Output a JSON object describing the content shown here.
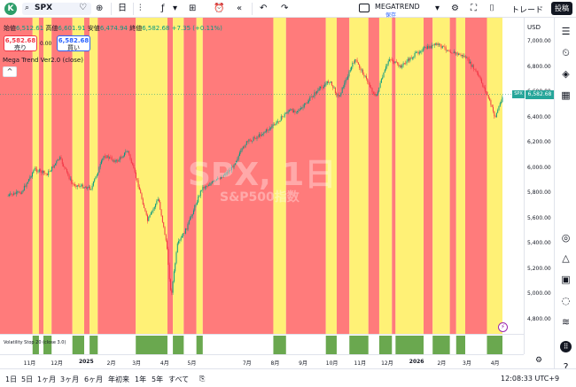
{
  "toolbar": {
    "avatar_letter": "K",
    "symbol": "SPX",
    "interval": "日",
    "indicator_name": "MEGATREND",
    "indicator_sub": "保存",
    "trade_label": "トレード",
    "post_label": "投稿"
  },
  "legend": {
    "open_label": "始値",
    "open": "6,512.61",
    "high_label": "高値",
    "high": "6,601.91",
    "low_label": "安値",
    "low": "6,474.94",
    "close_label": "終値",
    "close": "6,582.68",
    "change": "+7.35 (+0.11%)",
    "sell_price": "6,582.68",
    "sell_label": "売り",
    "buy_price": "6,582.68",
    "buy_label": "買い",
    "spread": "0.00",
    "indicator": "Mega Trend Ver2.0 (close)",
    "collapse_icon": "^"
  },
  "watermark": {
    "line1": "SPX, 1日",
    "line2": "S&P500指数"
  },
  "price_axis": {
    "currency": "USD",
    "ticks": [
      "7,000.00",
      "6,800.00",
      "6,600.00",
      "6,400.00",
      "6,200.00",
      "6,000.00",
      "5,800.00",
      "5,600.00",
      "5,400.00",
      "5,200.00",
      "5,000.00",
      "4,800.00"
    ],
    "last_price": "6,582.68",
    "symbol_tag": "SPX"
  },
  "time_axis": {
    "ticks": [
      "11月",
      "12月",
      "2025",
      "2月",
      "3月",
      "4月",
      "5月",
      "7月",
      "8月",
      "9月",
      "10月",
      "11月",
      "12月",
      "2026",
      "2月",
      "3月",
      "4月"
    ]
  },
  "sub_pane_label": "Volatility Stop 20 (close 3.0)",
  "tradingview_logo": "TradingView",
  "periods": [
    "1日",
    "5日",
    "1ヶ月",
    "3ヶ月",
    "6ヶ月",
    "年初来",
    "1年",
    "5年",
    "すべて"
  ],
  "clock": "12:08:33 UTC+9",
  "colors": {
    "bear_zone": "#ff7b7b",
    "bull_zone": "#fff176",
    "up": "#089981",
    "down": "#f23645",
    "sub_green": "#6aa84f"
  },
  "chart_data": {
    "type": "line",
    "series": [
      {
        "x": [
          "2024-10-10",
          "2024-10-25",
          "2024-11-08",
          "2024-11-22",
          "2024-12-06",
          "2024-12-20",
          "2025-01-10",
          "2025-01-24",
          "2025-02-07",
          "2025-02-19",
          "2025-03-03",
          "2025-03-13",
          "2025-03-25",
          "2025-04-03",
          "2025-04-08",
          "2025-04-15",
          "2025-04-25",
          "2025-05-12",
          "2025-05-28",
          "2025-06-13",
          "2025-06-30",
          "2025-07-15",
          "2025-07-31",
          "2025-08-15",
          "2025-08-29",
          "2025-09-15",
          "2025-09-30",
          "2025-10-10",
          "2025-10-28",
          "2025-11-07",
          "2025-11-20",
          "2025-12-05",
          "2025-12-17",
          "2026-01-08",
          "2026-01-27",
          "2026-02-12",
          "2026-02-27",
          "2026-03-12",
          "2026-03-24",
          "2026-04-01",
          "2026-04-10"
        ],
        "values": [
          5780,
          5810,
          5990,
          5950,
          6080,
          5870,
          5840,
          6100,
          6050,
          6140,
          5860,
          5580,
          5760,
          5400,
          4980,
          5390,
          5520,
          5840,
          5900,
          5990,
          6200,
          6260,
          6340,
          6450,
          6460,
          6600,
          6690,
          6560,
          6860,
          6740,
          6560,
          6870,
          6800,
          6930,
          6980,
          6920,
          6880,
          6750,
          6570,
          6400,
          6582.68
        ]
      }
    ],
    "ylim": [
      4700,
      7120
    ]
  },
  "zones": [
    {
      "start": "2024-10-01",
      "end": "2024-11-06",
      "trend": "bear"
    },
    {
      "start": "2024-11-06",
      "end": "2024-11-13",
      "trend": "bull"
    },
    {
      "start": "2024-11-13",
      "end": "2024-11-18",
      "trend": "bear"
    },
    {
      "start": "2024-11-18",
      "end": "2024-11-27",
      "trend": "bull"
    },
    {
      "start": "2024-11-27",
      "end": "2024-12-20",
      "trend": "bear"
    },
    {
      "start": "2024-12-20",
      "end": "2025-01-02",
      "trend": "bull"
    },
    {
      "start": "2025-01-02",
      "end": "2025-01-08",
      "trend": "bear"
    },
    {
      "start": "2025-01-08",
      "end": "2025-01-17",
      "trend": "bull"
    },
    {
      "start": "2025-01-17",
      "end": "2025-02-28",
      "trend": "bear"
    },
    {
      "start": "2025-02-28",
      "end": "2025-04-04",
      "trend": "bull"
    },
    {
      "start": "2025-04-04",
      "end": "2025-04-10",
      "trend": "bear"
    },
    {
      "start": "2025-04-10",
      "end": "2025-04-22",
      "trend": "bull"
    },
    {
      "start": "2025-04-22",
      "end": "2025-05-06",
      "trend": "bear"
    },
    {
      "start": "2025-05-06",
      "end": "2025-05-13",
      "trend": "bull"
    },
    {
      "start": "2025-05-13",
      "end": "2025-07-30",
      "trend": "bear"
    },
    {
      "start": "2025-07-30",
      "end": "2025-08-13",
      "trend": "bull"
    },
    {
      "start": "2025-08-13",
      "end": "2025-09-26",
      "trend": "bear"
    },
    {
      "start": "2025-09-26",
      "end": "2025-10-08",
      "trend": "bull"
    },
    {
      "start": "2025-10-08",
      "end": "2025-10-22",
      "trend": "bear"
    },
    {
      "start": "2025-10-22",
      "end": "2025-11-12",
      "trend": "bull"
    },
    {
      "start": "2025-11-12",
      "end": "2025-11-24",
      "trend": "bear"
    },
    {
      "start": "2025-11-24",
      "end": "2025-12-08",
      "trend": "bull"
    },
    {
      "start": "2025-12-08",
      "end": "2025-12-12",
      "trend": "bear"
    },
    {
      "start": "2025-12-12",
      "end": "2026-01-12",
      "trend": "bull"
    },
    {
      "start": "2026-01-12",
      "end": "2026-01-22",
      "trend": "bear"
    },
    {
      "start": "2026-01-22",
      "end": "2026-02-10",
      "trend": "bull"
    },
    {
      "start": "2026-02-10",
      "end": "2026-02-17",
      "trend": "bear"
    },
    {
      "start": "2026-02-17",
      "end": "2026-02-27",
      "trend": "bull"
    },
    {
      "start": "2026-02-27",
      "end": "2026-03-23",
      "trend": "bear"
    },
    {
      "start": "2026-03-23",
      "end": "2026-04-15",
      "trend": "bull"
    }
  ]
}
